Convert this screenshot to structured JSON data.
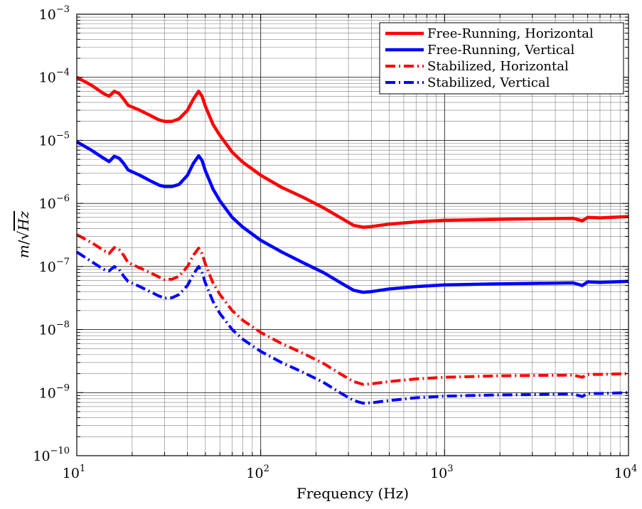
{
  "chart_data": {
    "type": "line",
    "xlabel": "Frequency (Hz)",
    "ylabel": "m/√Hz",
    "ylabel_parts": {
      "m": "m",
      "slash": "/",
      "sqrt": "√",
      "hz": "Hz"
    },
    "x_scale": "log",
    "y_scale": "log",
    "xlim": [
      10,
      10000
    ],
    "ylim": [
      1e-10,
      0.001
    ],
    "grid": true,
    "legend_position": "top-right",
    "x_ticks": [
      {
        "base": "10",
        "exp": "1"
      },
      {
        "base": "10",
        "exp": "2"
      },
      {
        "base": "10",
        "exp": "3"
      },
      {
        "base": "10",
        "exp": "4"
      }
    ],
    "y_ticks": [
      {
        "base": "10",
        "exp": "−10"
      },
      {
        "base": "10",
        "exp": "−9"
      },
      {
        "base": "10",
        "exp": "−8"
      },
      {
        "base": "10",
        "exp": "−7"
      },
      {
        "base": "10",
        "exp": "−6"
      },
      {
        "base": "10",
        "exp": "−5"
      },
      {
        "base": "10",
        "exp": "−4"
      },
      {
        "base": "10",
        "exp": "−3"
      }
    ],
    "series": [
      {
        "name": "Free-Running, Horizontal",
        "color": "#ff0000",
        "style": "solid",
        "points": [
          [
            10,
            0.0001
          ],
          [
            12,
            7.5e-05
          ],
          [
            14,
            5.5e-05
          ],
          [
            15,
            5e-05
          ],
          [
            16,
            6e-05
          ],
          [
            17,
            5.5e-05
          ],
          [
            18,
            4.5e-05
          ],
          [
            19,
            3.6e-05
          ],
          [
            22,
            3e-05
          ],
          [
            25,
            2.5e-05
          ],
          [
            28,
            2.1e-05
          ],
          [
            30,
            2e-05
          ],
          [
            33,
            2e-05
          ],
          [
            36,
            2.2e-05
          ],
          [
            40,
            3e-05
          ],
          [
            43,
            4.5e-05
          ],
          [
            46,
            6e-05
          ],
          [
            48,
            5e-05
          ],
          [
            50,
            3.5e-05
          ],
          [
            55,
            1.8e-05
          ],
          [
            60,
            1.2e-05
          ],
          [
            70,
            6.5e-06
          ],
          [
            80,
            4.5e-06
          ],
          [
            100,
            2.8e-06
          ],
          [
            130,
            1.8e-06
          ],
          [
            170,
            1.25e-06
          ],
          [
            220,
            8.5e-07
          ],
          [
            270,
            6e-07
          ],
          [
            320,
            4.5e-07
          ],
          [
            360,
            4.2e-07
          ],
          [
            400,
            4.3e-07
          ],
          [
            500,
            4.7e-07
          ],
          [
            700,
            5.1e-07
          ],
          [
            1000,
            5.4e-07
          ],
          [
            2000,
            5.6e-07
          ],
          [
            3000,
            5.7e-07
          ],
          [
            5000,
            5.8e-07
          ],
          [
            5600,
            5.3e-07
          ],
          [
            6000,
            6e-07
          ],
          [
            7000,
            5.9e-07
          ],
          [
            10000,
            6.2e-07
          ]
        ]
      },
      {
        "name": "Free-Running, Vertical",
        "color": "#0000ff",
        "style": "solid",
        "points": [
          [
            10,
            9.5e-06
          ],
          [
            12,
            7e-06
          ],
          [
            14,
            5.2e-06
          ],
          [
            15,
            4.6e-06
          ],
          [
            16,
            5.6e-06
          ],
          [
            17,
            5.2e-06
          ],
          [
            18,
            4.3e-06
          ],
          [
            19,
            3.4e-06
          ],
          [
            22,
            2.8e-06
          ],
          [
            25,
            2.3e-06
          ],
          [
            28,
            1.95e-06
          ],
          [
            30,
            1.85e-06
          ],
          [
            33,
            1.85e-06
          ],
          [
            36,
            2e-06
          ],
          [
            40,
            2.8e-06
          ],
          [
            43,
            4.3e-06
          ],
          [
            46,
            5.7e-06
          ],
          [
            48,
            4.8e-06
          ],
          [
            50,
            3.3e-06
          ],
          [
            55,
            1.7e-06
          ],
          [
            60,
            1.1e-06
          ],
          [
            70,
            6e-07
          ],
          [
            80,
            4.2e-07
          ],
          [
            100,
            2.6e-07
          ],
          [
            130,
            1.7e-07
          ],
          [
            170,
            1.15e-07
          ],
          [
            220,
            8e-08
          ],
          [
            270,
            5.6e-08
          ],
          [
            320,
            4.2e-08
          ],
          [
            360,
            3.9e-08
          ],
          [
            400,
            4e-08
          ],
          [
            500,
            4.4e-08
          ],
          [
            700,
            4.8e-08
          ],
          [
            1000,
            5.1e-08
          ],
          [
            2000,
            5.3e-08
          ],
          [
            3000,
            5.4e-08
          ],
          [
            5000,
            5.5e-08
          ],
          [
            5600,
            5e-08
          ],
          [
            6000,
            5.7e-08
          ],
          [
            7000,
            5.6e-08
          ],
          [
            10000,
            5.8e-08
          ]
        ]
      },
      {
        "name": "Stabilized, Horizontal",
        "color": "#ff0000",
        "style": "dashdot",
        "points": [
          [
            10,
            3.2e-07
          ],
          [
            12,
            2.4e-07
          ],
          [
            14,
            1.8e-07
          ],
          [
            15,
            1.6e-07
          ],
          [
            16,
            2e-07
          ],
          [
            17,
            1.85e-07
          ],
          [
            18,
            1.5e-07
          ],
          [
            19,
            1.15e-07
          ],
          [
            22,
            9.5e-08
          ],
          [
            25,
            8e-08
          ],
          [
            28,
            6.8e-08
          ],
          [
            30,
            6.2e-08
          ],
          [
            33,
            6.3e-08
          ],
          [
            36,
            7e-08
          ],
          [
            40,
            1e-07
          ],
          [
            43,
            1.5e-07
          ],
          [
            46,
            1.95e-07
          ],
          [
            48,
            1.6e-07
          ],
          [
            50,
            1.1e-07
          ],
          [
            55,
            5.5e-08
          ],
          [
            60,
            3.6e-08
          ],
          [
            70,
            2e-08
          ],
          [
            80,
            1.4e-08
          ],
          [
            100,
            9e-09
          ],
          [
            130,
            6e-09
          ],
          [
            170,
            4.2e-09
          ],
          [
            220,
            2.9e-09
          ],
          [
            270,
            2e-09
          ],
          [
            320,
            1.5e-09
          ],
          [
            360,
            1.35e-09
          ],
          [
            400,
            1.38e-09
          ],
          [
            500,
            1.5e-09
          ],
          [
            700,
            1.65e-09
          ],
          [
            1000,
            1.75e-09
          ],
          [
            2000,
            1.85e-09
          ],
          [
            3000,
            1.87e-09
          ],
          [
            5000,
            1.9e-09
          ],
          [
            5600,
            1.75e-09
          ],
          [
            6000,
            1.95e-09
          ],
          [
            7000,
            1.95e-09
          ],
          [
            10000,
            2e-09
          ]
        ]
      },
      {
        "name": "Stabilized, Vertical",
        "color": "#0000ff",
        "style": "dashdot",
        "points": [
          [
            10,
            1.7e-07
          ],
          [
            12,
            1.2e-07
          ],
          [
            14,
            9e-08
          ],
          [
            15,
            8.5e-08
          ],
          [
            16,
            1e-07
          ],
          [
            17,
            9e-08
          ],
          [
            18,
            7e-08
          ],
          [
            19,
            5.8e-08
          ],
          [
            22,
            4.8e-08
          ],
          [
            25,
            4e-08
          ],
          [
            28,
            3.4e-08
          ],
          [
            30,
            3.15e-08
          ],
          [
            33,
            3.2e-08
          ],
          [
            36,
            3.6e-08
          ],
          [
            40,
            5e-08
          ],
          [
            43,
            7.5e-08
          ],
          [
            46,
            1e-07
          ],
          [
            48,
            8e-08
          ],
          [
            50,
            5.5e-08
          ],
          [
            55,
            2.8e-08
          ],
          [
            60,
            1.8e-08
          ],
          [
            70,
            1e-08
          ],
          [
            80,
            7e-09
          ],
          [
            100,
            4.5e-09
          ],
          [
            130,
            3e-09
          ],
          [
            170,
            2.1e-09
          ],
          [
            220,
            1.45e-09
          ],
          [
            270,
            1e-09
          ],
          [
            320,
            7.5e-10
          ],
          [
            360,
            6.8e-10
          ],
          [
            400,
            6.9e-10
          ],
          [
            500,
            7.5e-10
          ],
          [
            700,
            8.3e-10
          ],
          [
            1000,
            8.8e-10
          ],
          [
            2000,
            9.2e-10
          ],
          [
            3000,
            9.3e-10
          ],
          [
            5000,
            9.5e-10
          ],
          [
            5600,
            8.7e-10
          ],
          [
            6000,
            9.7e-10
          ],
          [
            7000,
            9.7e-10
          ],
          [
            10000,
            1e-09
          ]
        ]
      }
    ]
  }
}
